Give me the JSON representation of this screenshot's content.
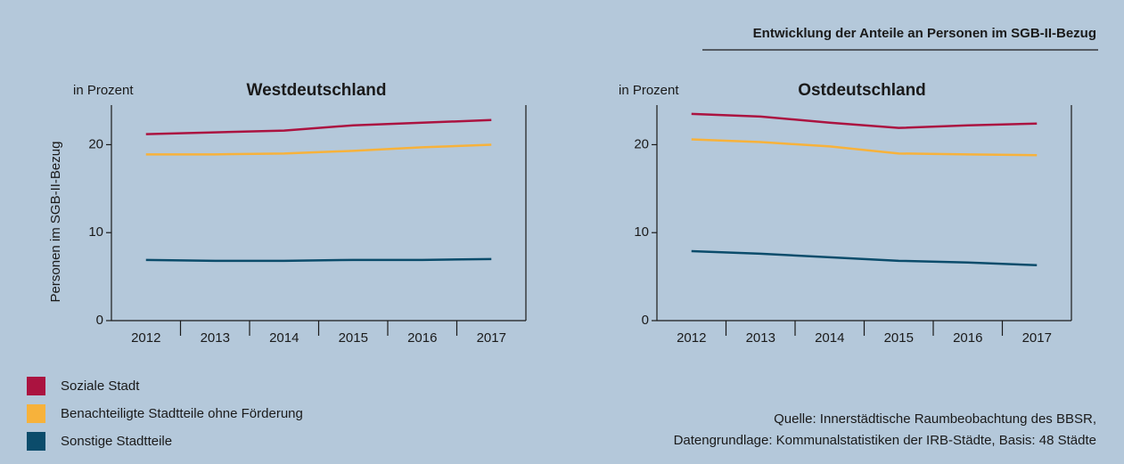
{
  "header": {
    "title": "Entwicklung der Anteile an Personen im SGB-II-Bezug"
  },
  "chart_data": [
    {
      "type": "line",
      "title": "Westdeutschland",
      "unit_label": "in Prozent",
      "y_label": "Personen im SGB-II-Bezug",
      "categories": [
        "2012",
        "2013",
        "2014",
        "2015",
        "2016",
        "2017"
      ],
      "ylim": [
        0,
        24.5
      ],
      "yticks": [
        0,
        10,
        20
      ],
      "series": [
        {
          "name": "Soziale Stadt",
          "color": "#ab1340",
          "values": [
            21.2,
            21.4,
            21.6,
            22.2,
            22.5,
            22.8
          ]
        },
        {
          "name": "Benachteiligte Stadtteile ohne Förderung",
          "color": "#f7b23b",
          "values": [
            18.9,
            18.9,
            19.0,
            19.3,
            19.7,
            20.0
          ]
        },
        {
          "name": "Sonstige Stadtteile",
          "color": "#0b4c6b",
          "values": [
            6.9,
            6.8,
            6.8,
            6.9,
            6.9,
            7.0
          ]
        }
      ]
    },
    {
      "type": "line",
      "title": "Ostdeutschland",
      "unit_label": "in Prozent",
      "categories": [
        "2012",
        "2013",
        "2014",
        "2015",
        "2016",
        "2017"
      ],
      "ylim": [
        0,
        24.5
      ],
      "yticks": [
        0,
        10,
        20
      ],
      "series": [
        {
          "color": "#ab1340",
          "values": [
            23.5,
            23.2,
            22.5,
            21.9,
            22.2,
            22.4
          ]
        },
        {
          "color": "#f7b23b",
          "values": [
            20.6,
            20.3,
            19.8,
            19.0,
            18.9,
            18.8
          ]
        },
        {
          "color": "#0b4c6b",
          "values": [
            7.9,
            7.6,
            7.2,
            6.8,
            6.6,
            6.3
          ]
        }
      ]
    }
  ],
  "source": {
    "line1": "Quelle: Innerstädtische Raumbeobachtung des BBSR,",
    "line2": "Datengrundlage: Kommunalstatistiken der IRB-Städte, Basis: 48 Städte"
  }
}
